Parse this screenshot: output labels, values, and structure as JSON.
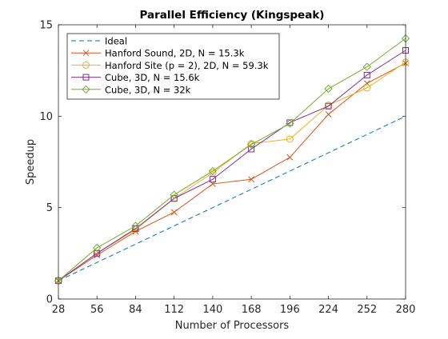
{
  "chart_data": {
    "type": "line",
    "title": "Parallel Efficiency (Kingspeak)",
    "xlabel": "Number of Processors",
    "ylabel": "Speedup",
    "x": [
      28,
      56,
      84,
      112,
      140,
      168,
      196,
      224,
      252,
      280
    ],
    "xlim": [
      28,
      280
    ],
    "ylim": [
      0,
      15
    ],
    "xticks": [
      28,
      56,
      84,
      112,
      140,
      168,
      196,
      224,
      252,
      280
    ],
    "yticks": [
      0,
      5,
      10,
      15
    ],
    "grid": false,
    "legend_position": "top-left",
    "series": [
      {
        "name": "Ideal",
        "color": "#0072BD",
        "marker": "none",
        "dash": true,
        "values": [
          1,
          2,
          3,
          4,
          5,
          6,
          7,
          8,
          9,
          10
        ]
      },
      {
        "name": "Hanford Sound, 2D, N = 15.3k",
        "color": "#D95319",
        "marker": "x",
        "values": [
          1.0,
          2.4,
          3.7,
          4.75,
          6.3,
          6.55,
          7.75,
          10.1,
          11.8,
          12.9
        ]
      },
      {
        "name": "Hanford Site (p = 2), 2D, N = 59.3k",
        "color": "#EDB120",
        "marker": "circle",
        "values": [
          1.0,
          2.5,
          3.8,
          5.5,
          6.9,
          8.5,
          8.75,
          10.6,
          11.55,
          12.95
        ]
      },
      {
        "name": "Cube, 3D, N = 15.6k",
        "color": "#7E2F8E",
        "marker": "square",
        "values": [
          1.0,
          2.5,
          3.85,
          5.5,
          6.55,
          8.2,
          9.65,
          10.55,
          12.25,
          13.6
        ]
      },
      {
        "name": "Cube, 3D, N = 32k",
        "color": "#77AC30",
        "marker": "diamond",
        "values": [
          1.0,
          2.8,
          4.0,
          5.7,
          7.0,
          8.45,
          9.6,
          11.5,
          12.7,
          14.25
        ]
      }
    ]
  }
}
